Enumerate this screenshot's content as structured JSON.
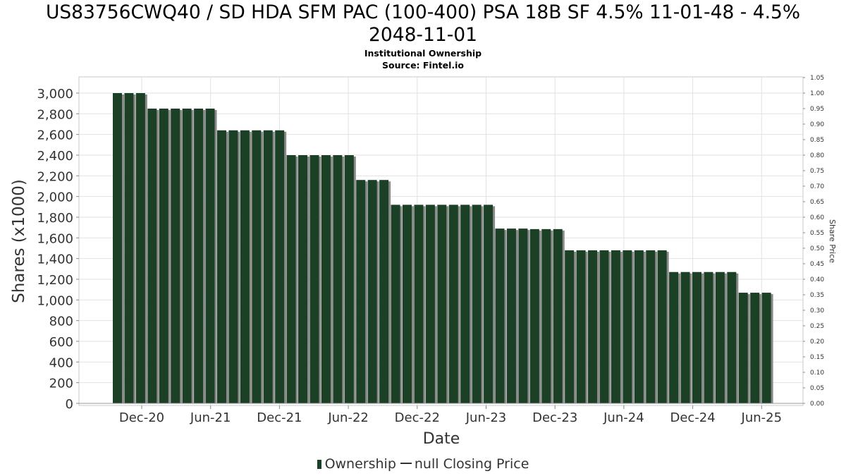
{
  "chart_data": {
    "type": "bar",
    "title_line1": "US83756CWQ40 / SD HDA SFM PAC (100-400) PSA 18B SF 4.5% 11-01-48 - 4.5%",
    "title_line2": "2048-11-01",
    "subtitle": "Institutional Ownership",
    "source": "Source: Fintel.io",
    "xlabel": "Date",
    "ylabel": "Shares (x1000)",
    "y2label": "Share Price",
    "ylim": [
      0,
      3150
    ],
    "y2lim": [
      0,
      1.05
    ],
    "y_ticks": [
      "0",
      "200",
      "400",
      "600",
      "800",
      "1,000",
      "1,200",
      "1,400",
      "1,600",
      "1,800",
      "2,000",
      "2,200",
      "2,400",
      "2,600",
      "2,800",
      "3,000"
    ],
    "y2_ticks": [
      "0.00",
      "0.05",
      "0.10",
      "0.15",
      "0.20",
      "0.25",
      "0.30",
      "0.35",
      "0.40",
      "0.45",
      "0.50",
      "0.55",
      "0.60",
      "0.65",
      "0.70",
      "0.75",
      "0.80",
      "0.85",
      "0.90",
      "0.95",
      "1.00",
      "1.05"
    ],
    "x_ticks": [
      "Dec-20",
      "Jun-21",
      "Dec-21",
      "Jun-22",
      "Dec-22",
      "Jun-23",
      "Dec-23",
      "Jun-24",
      "Dec-24",
      "Jun-25"
    ],
    "series": [
      {
        "name": "Ownership",
        "color": "#1b4026",
        "values": [
          3000,
          3000,
          3000,
          2850,
          2850,
          2850,
          2850,
          2850,
          2850,
          2640,
          2640,
          2640,
          2640,
          2640,
          2640,
          2400,
          2400,
          2400,
          2400,
          2400,
          2400,
          2160,
          2160,
          2160,
          1920,
          1920,
          1920,
          1920,
          1920,
          1920,
          1920,
          1920,
          1920,
          1690,
          1690,
          1690,
          1685,
          1685,
          1685,
          1480,
          1480,
          1480,
          1480,
          1480,
          1480,
          1480,
          1480,
          1480,
          1270,
          1270,
          1270,
          1270,
          1270,
          1270,
          1070,
          1070,
          1070
        ]
      }
    ],
    "legend": [
      "Ownership",
      "null Closing Price"
    ],
    "grid": true
  }
}
